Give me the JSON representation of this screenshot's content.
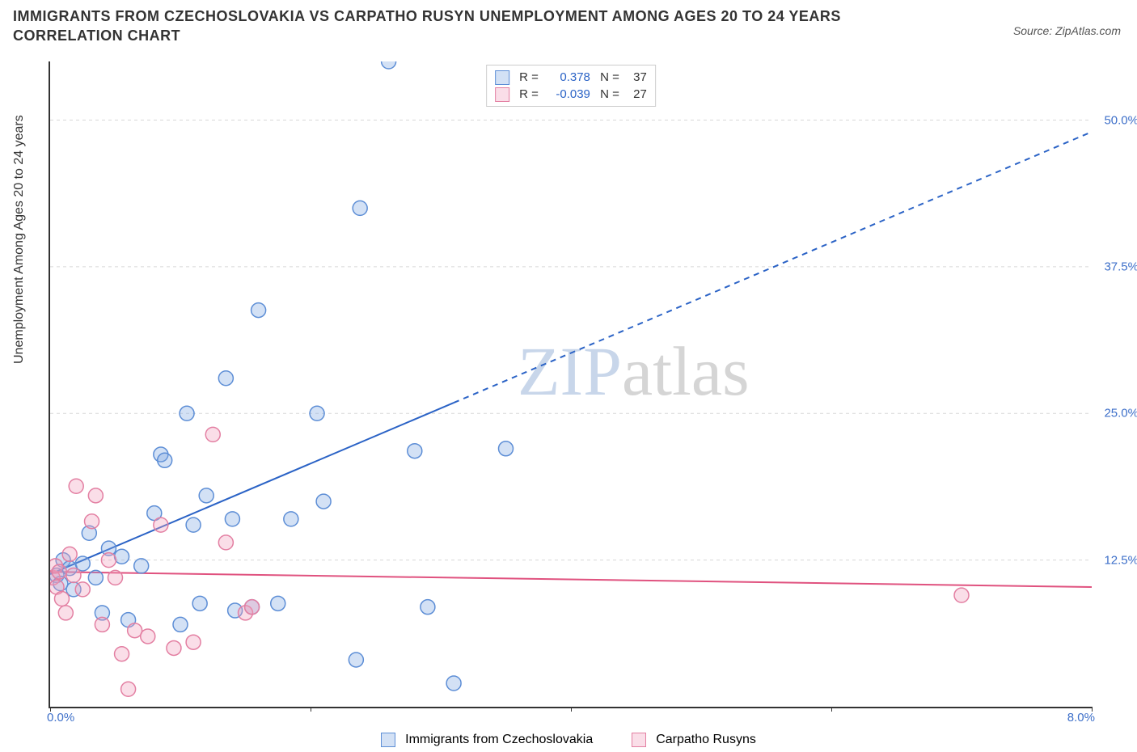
{
  "title": "IMMIGRANTS FROM CZECHOSLOVAKIA VS CARPATHO RUSYN UNEMPLOYMENT AMONG AGES 20 TO 24 YEARS CORRELATION CHART",
  "source": "Source: ZipAtlas.com",
  "ylabel": "Unemployment Among Ages 20 to 24 years",
  "watermark": {
    "a": "ZIP",
    "b": "atlas",
    "color_a": "#c8d6ea",
    "color_b": "#d5d5d5"
  },
  "chart": {
    "type": "scatter",
    "xlim": [
      0,
      8
    ],
    "ylim": [
      0,
      55
    ],
    "x_ticks": [
      0,
      2,
      4,
      6,
      8
    ],
    "x_tick_labels": [
      "0.0%",
      "",
      "",
      "",
      "8.0%"
    ],
    "y_ticks": [
      12.5,
      25.0,
      37.5,
      50.0
    ],
    "y_tick_labels": [
      "12.5%",
      "25.0%",
      "37.5%",
      "50.0%"
    ],
    "y_tick_color": "#3d6fc9",
    "x_tick_color": "#3d6fc9",
    "grid_color": "#d8d8d8",
    "background": "#ffffff",
    "marker_radius": 9,
    "marker_stroke_width": 1.5,
    "series": [
      {
        "id": "a",
        "name": "Immigrants from Czechoslovakia",
        "color_stroke": "#5d8ed6",
        "color_fill": "rgba(130,170,225,0.35)",
        "R": "0.378",
        "N": "37",
        "trend": {
          "x1": 0.0,
          "y1": 11.3,
          "x2": 8.0,
          "y2": 49.0,
          "solid_until_x": 3.1,
          "color": "#2b63c6",
          "width": 2
        },
        "points": [
          [
            0.05,
            11.2
          ],
          [
            0.08,
            10.5
          ],
          [
            0.1,
            12.5
          ],
          [
            0.15,
            11.8
          ],
          [
            0.18,
            10.0
          ],
          [
            0.25,
            12.2
          ],
          [
            0.3,
            14.8
          ],
          [
            0.35,
            11.0
          ],
          [
            0.4,
            8.0
          ],
          [
            0.45,
            13.5
          ],
          [
            0.55,
            12.8
          ],
          [
            0.6,
            7.4
          ],
          [
            0.7,
            12.0
          ],
          [
            0.8,
            16.5
          ],
          [
            0.85,
            21.5
          ],
          [
            0.88,
            21.0
          ],
          [
            1.0,
            7.0
          ],
          [
            1.05,
            25.0
          ],
          [
            1.1,
            15.5
          ],
          [
            1.15,
            8.8
          ],
          [
            1.2,
            18.0
          ],
          [
            1.35,
            28.0
          ],
          [
            1.4,
            16.0
          ],
          [
            1.42,
            8.2
          ],
          [
            1.6,
            33.8
          ],
          [
            1.55,
            8.5
          ],
          [
            1.75,
            8.8
          ],
          [
            1.85,
            16.0
          ],
          [
            2.05,
            25.0
          ],
          [
            2.1,
            17.5
          ],
          [
            2.35,
            4.0
          ],
          [
            2.38,
            42.5
          ],
          [
            2.6,
            55.0
          ],
          [
            2.8,
            21.8
          ],
          [
            2.9,
            8.5
          ],
          [
            3.1,
            2.0
          ],
          [
            3.5,
            22.0
          ]
        ]
      },
      {
        "id": "b",
        "name": "Carpatho Rusyns",
        "color_stroke": "#e37fa2",
        "color_fill": "rgba(240,160,190,0.35)",
        "R": "-0.039",
        "N": "27",
        "trend": {
          "x1": 0.0,
          "y1": 11.5,
          "x2": 8.0,
          "y2": 10.2,
          "solid_until_x": 8.0,
          "color": "#e0527f",
          "width": 2
        },
        "points": [
          [
            0.02,
            11.0
          ],
          [
            0.04,
            12.0
          ],
          [
            0.05,
            10.2
          ],
          [
            0.07,
            11.5
          ],
          [
            0.09,
            9.2
          ],
          [
            0.12,
            8.0
          ],
          [
            0.15,
            13.0
          ],
          [
            0.18,
            11.2
          ],
          [
            0.2,
            18.8
          ],
          [
            0.25,
            10.0
          ],
          [
            0.32,
            15.8
          ],
          [
            0.35,
            18.0
          ],
          [
            0.4,
            7.0
          ],
          [
            0.45,
            12.5
          ],
          [
            0.5,
            11.0
          ],
          [
            0.55,
            4.5
          ],
          [
            0.6,
            1.5
          ],
          [
            0.65,
            6.5
          ],
          [
            0.75,
            6.0
          ],
          [
            0.85,
            15.5
          ],
          [
            0.95,
            5.0
          ],
          [
            1.1,
            5.5
          ],
          [
            1.25,
            23.2
          ],
          [
            1.35,
            14.0
          ],
          [
            1.5,
            8.0
          ],
          [
            1.55,
            8.5
          ],
          [
            7.0,
            9.5
          ]
        ]
      }
    ],
    "legend": {
      "items": [
        {
          "series": "a"
        },
        {
          "series": "b"
        }
      ]
    }
  }
}
